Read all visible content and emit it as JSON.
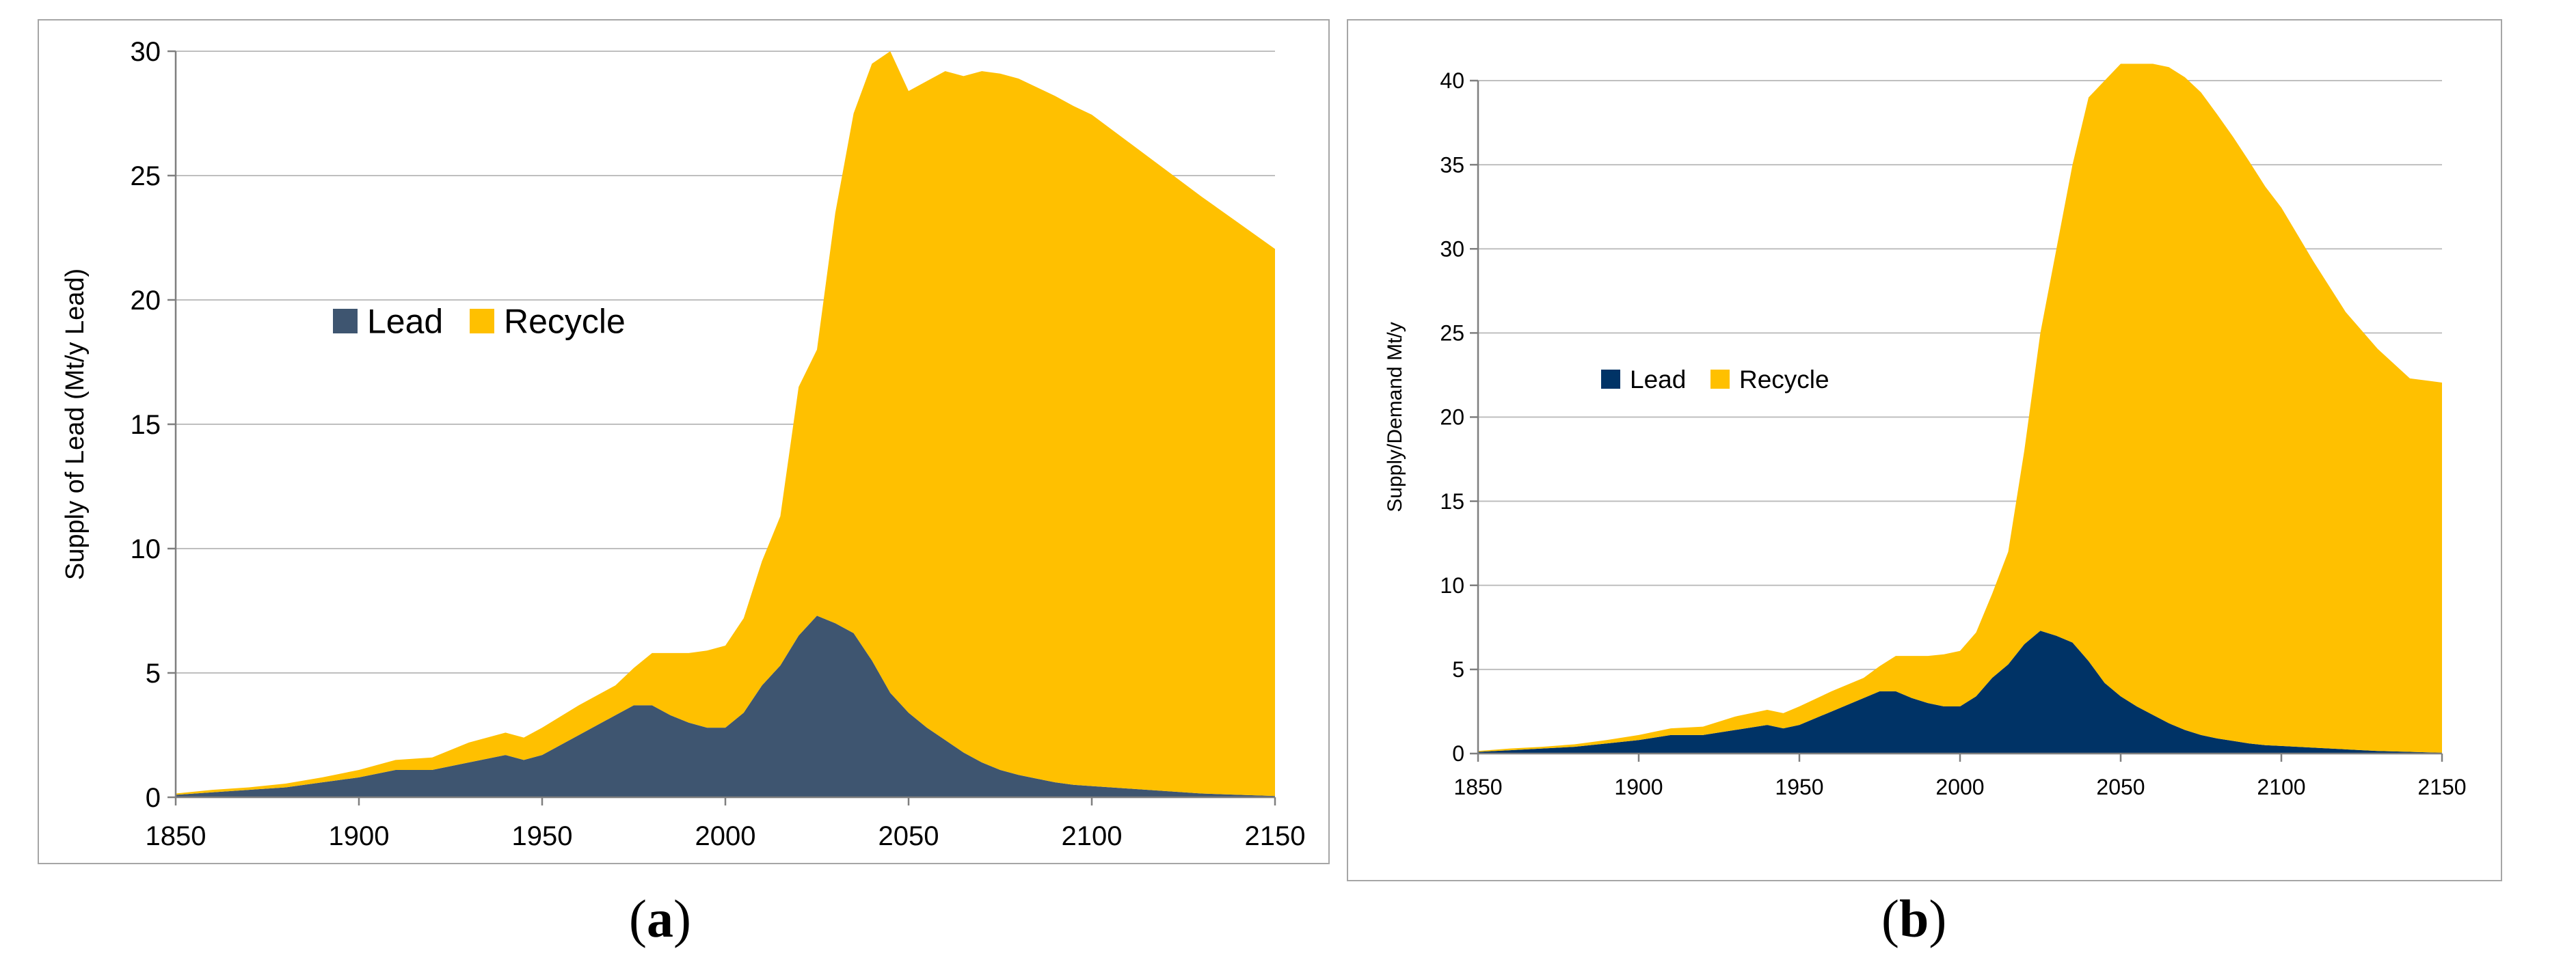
{
  "captions": {
    "a": "a",
    "b": "b"
  },
  "chart_data": [
    {
      "id": "a",
      "type": "area",
      "stacked": true,
      "title": "",
      "xlabel": "",
      "ylabel": "Supply of Lead (Mt/y Lead)",
      "xlim": [
        1850,
        2150
      ],
      "ylim": [
        0,
        30
      ],
      "xticks": [
        1850,
        1900,
        1950,
        2000,
        2050,
        2100,
        2150
      ],
      "yticks": [
        0,
        5,
        10,
        15,
        20,
        25,
        30
      ],
      "grid": true,
      "legend_position": "middle-left",
      "x": [
        1850,
        1860,
        1870,
        1880,
        1890,
        1900,
        1910,
        1920,
        1930,
        1940,
        1945,
        1950,
        1960,
        1970,
        1975,
        1980,
        1985,
        1990,
        1995,
        2000,
        2005,
        2010,
        2015,
        2020,
        2025,
        2030,
        2035,
        2040,
        2045,
        2050,
        2055,
        2060,
        2065,
        2070,
        2075,
        2080,
        2085,
        2090,
        2095,
        2100,
        2110,
        2120,
        2130,
        2140,
        2150
      ],
      "series": [
        {
          "name": "Lead",
          "color": "#3e5570",
          "values": [
            0.1,
            0.2,
            0.3,
            0.4,
            0.6,
            0.8,
            1.1,
            1.1,
            1.4,
            1.7,
            1.5,
            1.7,
            2.5,
            3.3,
            3.7,
            3.7,
            3.3,
            3.0,
            2.8,
            2.8,
            3.4,
            4.5,
            5.3,
            6.5,
            7.3,
            7.0,
            6.6,
            5.5,
            4.2,
            3.4,
            2.8,
            2.3,
            1.8,
            1.4,
            1.1,
            0.9,
            0.75,
            0.6,
            0.5,
            0.45,
            0.35,
            0.25,
            0.15,
            0.1,
            0.05
          ]
        },
        {
          "name": "Recycle",
          "color": "#ffc000",
          "values": [
            0.05,
            0.1,
            0.1,
            0.15,
            0.2,
            0.3,
            0.4,
            0.5,
            0.8,
            0.9,
            0.9,
            1.1,
            1.2,
            1.2,
            1.5,
            2.1,
            2.5,
            2.8,
            3.1,
            3.3,
            3.8,
            5.0,
            6.0,
            10.0,
            10.7,
            16.5,
            20.9,
            24.0,
            25.8,
            25.0,
            26.0,
            26.9,
            27.2,
            27.8,
            28.0,
            28.0,
            27.8,
            27.6,
            27.3,
            27.0,
            26.0,
            25.0,
            24.0,
            23.0,
            22.0
          ]
        }
      ]
    },
    {
      "id": "b",
      "type": "area",
      "stacked": true,
      "title": "",
      "xlabel": "",
      "ylabel": "Supply/Demand Mt/y",
      "xlim": [
        1850,
        2150
      ],
      "ylim": [
        0,
        40
      ],
      "xticks": [
        1850,
        1900,
        1950,
        2000,
        2050,
        2100,
        2150
      ],
      "yticks": [
        0,
        5,
        10,
        15,
        20,
        25,
        30,
        35,
        40
      ],
      "grid": true,
      "legend_position": "middle-left",
      "x": [
        1850,
        1860,
        1870,
        1880,
        1890,
        1900,
        1910,
        1920,
        1930,
        1940,
        1945,
        1950,
        1960,
        1970,
        1975,
        1980,
        1985,
        1990,
        1995,
        2000,
        2005,
        2010,
        2015,
        2020,
        2025,
        2030,
        2035,
        2040,
        2045,
        2050,
        2055,
        2060,
        2065,
        2070,
        2075,
        2080,
        2085,
        2090,
        2095,
        2100,
        2110,
        2120,
        2130,
        2140,
        2150
      ],
      "series": [
        {
          "name": "Lead",
          "color": "#003366",
          "values": [
            0.1,
            0.2,
            0.3,
            0.4,
            0.6,
            0.8,
            1.1,
            1.1,
            1.4,
            1.7,
            1.5,
            1.7,
            2.5,
            3.3,
            3.7,
            3.7,
            3.3,
            3.0,
            2.8,
            2.8,
            3.4,
            4.5,
            5.3,
            6.5,
            7.3,
            7.0,
            6.6,
            5.5,
            4.2,
            3.4,
            2.8,
            2.3,
            1.8,
            1.4,
            1.1,
            0.9,
            0.75,
            0.6,
            0.5,
            0.45,
            0.35,
            0.25,
            0.15,
            0.1,
            0.05
          ]
        },
        {
          "name": "Recycle",
          "color": "#ffc000",
          "values": [
            0.05,
            0.1,
            0.1,
            0.15,
            0.2,
            0.3,
            0.4,
            0.5,
            0.8,
            0.9,
            0.9,
            1.1,
            1.2,
            1.2,
            1.5,
            2.1,
            2.5,
            2.8,
            3.1,
            3.3,
            3.8,
            5.0,
            6.7,
            11.5,
            17.7,
            23.0,
            28.4,
            33.5,
            35.8,
            37.6,
            38.2,
            38.7,
            39.0,
            38.8,
            38.2,
            37.1,
            35.9,
            34.6,
            33.2,
            32.0,
            28.9,
            26.0,
            23.9,
            22.2,
            22.0
          ]
        }
      ]
    }
  ]
}
